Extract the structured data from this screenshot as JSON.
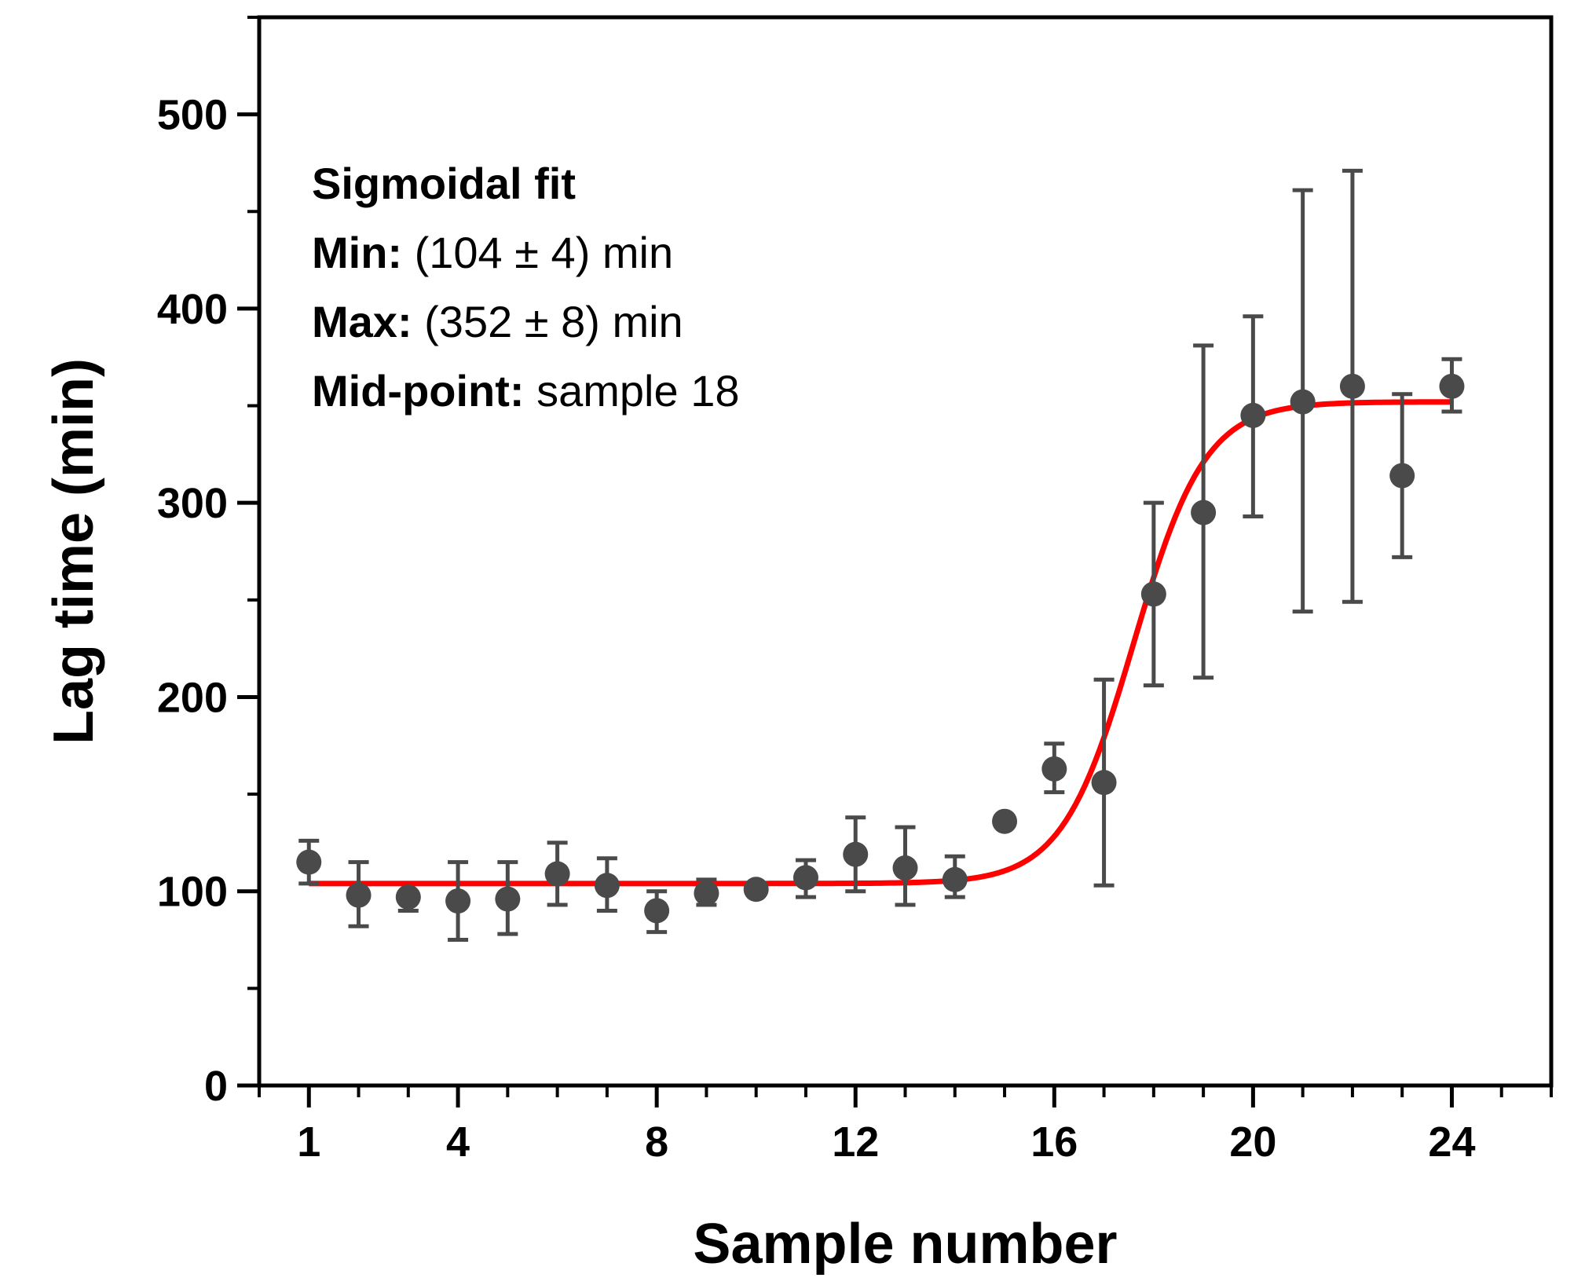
{
  "chart_data": {
    "type": "scatter",
    "title": "",
    "xlabel": "Sample number",
    "ylabel": "Lag time (min)",
    "xlim": [
      0,
      26
    ],
    "ylim": [
      0,
      550
    ],
    "x_ticks": [
      1,
      4,
      8,
      12,
      16,
      20,
      24
    ],
    "x_tick_labels": [
      "1",
      "4",
      "8",
      "12",
      "16",
      "20",
      "24"
    ],
    "y_ticks": [
      0,
      100,
      200,
      300,
      400,
      500
    ],
    "y_tick_labels": [
      "0",
      "100",
      "200",
      "300",
      "400",
      "500"
    ],
    "series": [
      {
        "name": "Lag time",
        "color": "#4a4a4a",
        "x": [
          1,
          2,
          3,
          4,
          5,
          6,
          7,
          8,
          9,
          10,
          11,
          12,
          13,
          14,
          15,
          16,
          17,
          18,
          19,
          20,
          21,
          22,
          23,
          24
        ],
        "y": [
          115,
          98,
          97,
          95,
          96,
          109,
          103,
          90,
          99,
          101,
          107,
          119,
          112,
          106,
          136,
          163,
          156,
          253,
          295,
          345,
          352,
          360,
          314,
          360
        ],
        "error_low": [
          104,
          82,
          90,
          75,
          78,
          93,
          90,
          79,
          93,
          100,
          97,
          100,
          93,
          97,
          136,
          151,
          103,
          206,
          210,
          293,
          244,
          249,
          272,
          347
        ],
        "error_high": [
          126,
          115,
          98,
          115,
          115,
          125,
          117,
          100,
          106,
          102,
          116,
          138,
          133,
          118,
          136,
          176,
          209,
          300,
          381,
          396,
          461,
          471,
          356,
          374
        ]
      }
    ],
    "fit": {
      "name": "Sigmoidal fit",
      "color": "#ff0000",
      "min": 104,
      "max": 352,
      "midpoint": 17.6,
      "slope": 0.72,
      "x_range": [
        1,
        24
      ]
    },
    "annotation": {
      "title": "Sigmoidal fit",
      "lines": [
        {
          "label": "Min:",
          "value": " (104 ± 4) min"
        },
        {
          "label": "Max:",
          "value": " (352 ± 8) min"
        },
        {
          "label": "Mid-point:",
          "value": " sample 18"
        }
      ]
    }
  }
}
